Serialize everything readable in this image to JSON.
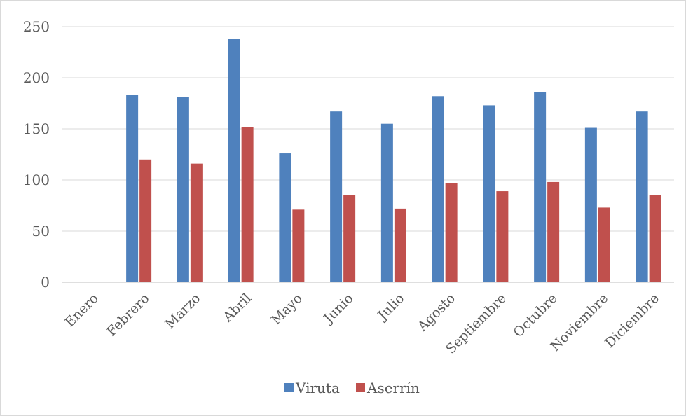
{
  "chart_data": {
    "type": "bar",
    "categories": [
      "Enero",
      "Febrero",
      "Marzo",
      "Abril",
      "Mayo",
      "Junio",
      "Julio",
      "Agosto",
      "Septiembre",
      "Octubre",
      "Noviembre",
      "Diciembre"
    ],
    "series": [
      {
        "name": "Viruta",
        "color": "#4f81bd",
        "values": [
          0,
          183,
          181,
          238,
          126,
          167,
          155,
          182,
          173,
          186,
          151,
          167
        ]
      },
      {
        "name": "Aserrín",
        "color": "#c0504d",
        "values": [
          0,
          120,
          116,
          152,
          71,
          85,
          72,
          97,
          89,
          98,
          73,
          85
        ]
      }
    ],
    "ylim": [
      0,
      250
    ],
    "yticks": [
      0,
      50,
      100,
      150,
      200,
      250
    ],
    "grid": true,
    "legend_position": "bottom",
    "xlabel_rotation": "45 degrees counter-clockwise",
    "title": "",
    "xlabel": "",
    "ylabel": ""
  }
}
